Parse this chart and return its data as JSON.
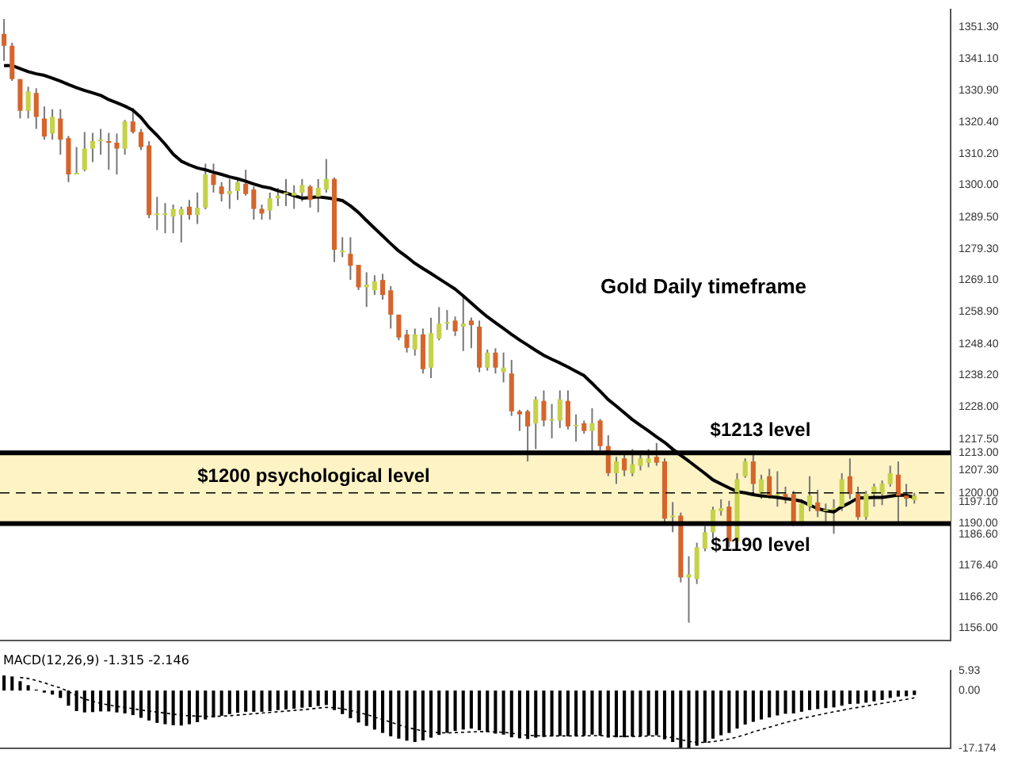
{
  "chart_data": [
    {
      "type": "candlestick",
      "categories": [
        null,
        null,
        null,
        null,
        null,
        null,
        null,
        null,
        null,
        null,
        null,
        null,
        null,
        null,
        null,
        null,
        null,
        null,
        null,
        null,
        null,
        null,
        null,
        null,
        null,
        null,
        null,
        null,
        null,
        null,
        null,
        null,
        null,
        null,
        null,
        null,
        null,
        null,
        null,
        null,
        null,
        null,
        null,
        null,
        null,
        null,
        null,
        null,
        null,
        null,
        null,
        null,
        null,
        null,
        null,
        null,
        null,
        null,
        null,
        null,
        null,
        null,
        null,
        null,
        null,
        null,
        null,
        null,
        null,
        null,
        null,
        null,
        null,
        null,
        null,
        null,
        null,
        null,
        null,
        null,
        null,
        null,
        null,
        null,
        null,
        null,
        null,
        null,
        null,
        null,
        null,
        null,
        null,
        null,
        null,
        null,
        null,
        null,
        null,
        null,
        null,
        null,
        null,
        null,
        null,
        null,
        null,
        null,
        null,
        null,
        null,
        null,
        null,
        null,
        null,
        null,
        null,
        null
      ],
      "ohlc": [
        [
          1349.2,
          1354,
          1340.4,
          1345.3
        ],
        [
          1345.3,
          1346.3,
          1333.9,
          1334.5
        ],
        [
          1334.5,
          1334.5,
          1321.7,
          1324.2
        ],
        [
          1324.2,
          1332,
          1321.7,
          1330.5
        ],
        [
          1330,
          1331.5,
          1318.3,
          1322.2
        ],
        [
          1321.7,
          1325.6,
          1314.8,
          1315.8
        ],
        [
          1316.8,
          1324.7,
          1314.8,
          1322.2
        ],
        [
          1321.7,
          1324.7,
          1309.9,
          1314.8
        ],
        [
          1315.3,
          1316,
          1301,
          1303.5
        ],
        [
          1303.5,
          1312.4,
          1303.5,
          1304
        ],
        [
          1305,
          1317.3,
          1304.5,
          1311.9
        ],
        [
          1311.9,
          1317,
          1307.5,
          1314.3
        ],
        [
          1314.3,
          1318.3,
          1309.9,
          1314.3
        ],
        [
          1314.3,
          1317,
          1305,
          1313.8
        ],
        [
          1313.8,
          1316.8,
          1303.5,
          1311.9
        ],
        [
          1311.9,
          1321.2,
          1309.9,
          1320.7
        ],
        [
          1320.7,
          1325.1,
          1316.8,
          1317.3
        ],
        [
          1317.3,
          1318.3,
          1311.4,
          1312.4
        ],
        [
          1312.9,
          1314.3,
          1289.3,
          1290.3
        ],
        [
          1290.3,
          1296.2,
          1285.4,
          1290.3
        ],
        [
          1290.3,
          1294.2,
          1284.4,
          1290.3
        ],
        [
          1289.8,
          1293.7,
          1284.4,
          1292.3
        ],
        [
          1290.3,
          1293,
          1281.4,
          1292.3
        ],
        [
          1293,
          1295.2,
          1288.8,
          1290.3
        ],
        [
          1290.3,
          1297.6,
          1287.4,
          1292.7
        ],
        [
          1292.7,
          1307,
          1292.2,
          1303.5
        ],
        [
          1303.5,
          1307,
          1297.6,
          1300.1
        ],
        [
          1299.6,
          1301,
          1294.7,
          1297.1
        ],
        [
          1297.1,
          1302,
          1292.3,
          1298.1
        ],
        [
          1298.1,
          1302.5,
          1295.2,
          1301
        ],
        [
          1300.5,
          1305,
          1296.6,
          1297.1
        ],
        [
          1298.6,
          1299.6,
          1288.8,
          1292.3
        ],
        [
          1292.3,
          1293.7,
          1288.8,
          1290.8
        ],
        [
          1291.8,
          1297.6,
          1288.8,
          1295.7
        ],
        [
          1295.7,
          1299.1,
          1293.2,
          1296.6
        ],
        [
          1297.1,
          1302,
          1293.2,
          1297.1
        ],
        [
          1296.6,
          1300,
          1292.3,
          1297.6
        ],
        [
          1297.6,
          1302,
          1294.7,
          1300
        ],
        [
          1299.6,
          1300.1,
          1292.7,
          1295.2
        ],
        [
          1296.2,
          1302,
          1291.2,
          1299.1
        ],
        [
          1298.6,
          1308.5,
          1297.6,
          1302
        ],
        [
          1302,
          1302.5,
          1275,
          1279
        ],
        [
          1278.2,
          1283.1,
          1276.6,
          1278.2
        ],
        [
          1277.7,
          1283.1,
          1269.2,
          1273.8
        ],
        [
          1274.1,
          1274.1,
          1265.9,
          1266.8
        ],
        [
          1266.8,
          1271.7,
          1260.4,
          1267.7
        ],
        [
          1265.8,
          1270.7,
          1264.3,
          1268.7
        ],
        [
          1269.2,
          1271.2,
          1262.8,
          1264.3
        ],
        [
          1265.8,
          1267.2,
          1253.4,
          1257.9
        ],
        [
          1257.9,
          1258,
          1249.6,
          1250.5
        ],
        [
          1251.5,
          1253,
          1245.6,
          1247.1
        ],
        [
          1246.6,
          1253.4,
          1244.6,
          1251.5
        ],
        [
          1251.5,
          1253.4,
          1238.8,
          1240.2
        ],
        [
          1240.7,
          1256.9,
          1237.3,
          1251.9
        ],
        [
          1250.1,
          1260.4,
          1249.6,
          1255
        ],
        [
          1255,
          1259.4,
          1253,
          1255
        ],
        [
          1256,
          1257.3,
          1251,
          1252.5
        ],
        [
          1254,
          1264.3,
          1246.1,
          1255
        ],
        [
          1256,
          1257,
          1247,
          1254.5
        ],
        [
          1254,
          1256,
          1239.2,
          1240.7
        ],
        [
          1240.7,
          1246.6,
          1239.7,
          1245.6
        ],
        [
          1245.6,
          1247,
          1238.8,
          1240.7
        ],
        [
          1239.2,
          1245.6,
          1235.9,
          1240.7
        ],
        [
          1238.8,
          1243.2,
          1225,
          1226.5
        ],
        [
          1226.5,
          1227,
          1220.1,
          1225.5
        ],
        [
          1226.5,
          1227,
          1210.2,
          1221.6
        ],
        [
          1222.5,
          1231.3,
          1214.2,
          1230.4
        ],
        [
          1229.9,
          1233.3,
          1221.6,
          1223.5
        ],
        [
          1223.5,
          1228.9,
          1217.7,
          1223.5
        ],
        [
          1223.5,
          1233.3,
          1221.1,
          1230.4
        ],
        [
          1229.9,
          1233.3,
          1220.6,
          1221.6
        ],
        [
          1221.6,
          1225.5,
          1216.7,
          1221.6
        ],
        [
          1222.6,
          1223.5,
          1219.2,
          1220.1
        ],
        [
          1220.1,
          1227.5,
          1212.8,
          1222.6
        ],
        [
          1223.5,
          1224,
          1213.8,
          1215.2
        ],
        [
          1215.2,
          1218.7,
          1205.4,
          1206.4
        ],
        [
          1206.4,
          1211.7,
          1202.9,
          1210.2
        ],
        [
          1211.2,
          1213.2,
          1205.4,
          1207.3
        ],
        [
          1206.4,
          1214.2,
          1205.4,
          1209.3
        ],
        [
          1208.8,
          1213.7,
          1207.3,
          1211.2
        ],
        [
          1209.8,
          1214.2,
          1208.3,
          1211.2
        ],
        [
          1211.7,
          1216.2,
          1208.8,
          1209.8
        ],
        [
          1210.2,
          1211.2,
          1189.7,
          1191.6
        ],
        [
          1192.1,
          1197,
          1187.2,
          1192.1
        ],
        [
          1192.6,
          1193.6,
          1170.9,
          1172.5
        ],
        [
          1172.5,
          1179.4,
          1157.8,
          1173.5
        ],
        [
          1172,
          1183.8,
          1170.4,
          1182.3
        ],
        [
          1181.9,
          1189.2,
          1181,
          1187.2
        ],
        [
          1187.2,
          1195.5,
          1185.2,
          1194.5
        ],
        [
          1194.1,
          1197.9,
          1192.6,
          1195
        ],
        [
          1195.5,
          1197.4,
          1182.3,
          1184.2
        ],
        [
          1184.2,
          1206.4,
          1182.3,
          1204.4
        ],
        [
          1205.4,
          1211.2,
          1204.9,
          1210.2
        ],
        [
          1210.2,
          1213.7,
          1200,
          1202.9
        ],
        [
          1199.6,
          1205.9,
          1198.1,
          1204.4
        ],
        [
          1205.4,
          1207.8,
          1198.1,
          1199.1
        ],
        [
          1199.1,
          1207,
          1195.5,
          1199.1
        ],
        [
          1199.6,
          1202,
          1196.5,
          1198.6
        ],
        [
          1199.6,
          1200.6,
          1189.2,
          1189.7
        ],
        [
          1189.7,
          1197.9,
          1189.2,
          1196.5
        ],
        [
          1195.5,
          1205.4,
          1194,
          1199.1
        ],
        [
          1196.9,
          1201,
          1192.1,
          1194.1
        ],
        [
          1194.1,
          1196.5,
          1190.7,
          1194.1
        ],
        [
          1194.6,
          1197.9,
          1186.7,
          1194.6
        ],
        [
          1195.5,
          1206.4,
          1194.1,
          1204.4
        ],
        [
          1205.4,
          1211.2,
          1198,
          1199.6
        ],
        [
          1199.6,
          1202,
          1191.2,
          1192.1
        ],
        [
          1192.1,
          1200.6,
          1191.2,
          1199.6
        ],
        [
          1199.6,
          1203,
          1195.5,
          1202
        ],
        [
          1199.6,
          1204,
          1196,
          1203
        ],
        [
          1202.9,
          1208.8,
          1202,
          1206.4
        ],
        [
          1205.9,
          1210.2,
          1190.7,
          1199.1
        ],
        [
          1199.1,
          1202.9,
          1195.5,
          1198.1
        ],
        [
          1197.6,
          1200,
          1196.5,
          1199.1
        ],
        null,
        null,
        null,
        null
      ],
      "series": [
        {
          "type": "line",
          "color": "#000000",
          "values": [
            1338.9,
            1338.9,
            1337.9,
            1336.9,
            1336.2,
            1335.7,
            1334.8,
            1333.8,
            1332.7,
            1331.7,
            1330.8,
            1330,
            1329.2,
            1327.8,
            1326.8,
            1325.7,
            1324.4,
            1322,
            1318.8,
            1316.2,
            1313.3,
            1310.1,
            1307.8,
            1306.6,
            1305.6,
            1305,
            1304.2,
            1303.5,
            1302.7,
            1302.1,
            1301.3,
            1300.4,
            1299.6,
            1299.1,
            1298.2,
            1297.5,
            1296.6,
            1295.8,
            1296,
            1296.2,
            1295.9,
            1295.5,
            1295,
            1293.3,
            1291.1,
            1288.5,
            1286,
            1283.5,
            1281,
            1278.6,
            1276.7,
            1274.6,
            1272.9,
            1271.3,
            1269.6,
            1267.9,
            1266.2,
            1264,
            1261.7,
            1259.4,
            1257.2,
            1255.3,
            1253.4,
            1251.5,
            1249.7,
            1248,
            1246.3,
            1244.7,
            1243.4,
            1242.2,
            1240.9,
            1239.5,
            1238.1,
            1235.6,
            1233,
            1230.3,
            1228.2,
            1226,
            1223.8,
            1221.9,
            1220.1,
            1218.2,
            1216.4,
            1214.2,
            1212.2,
            1210.3,
            1208.3,
            1206.3,
            1204.2,
            1202.9,
            1201.6,
            1200.4,
            1200,
            1199.4,
            1199,
            1198.8,
            1198.5,
            1198.1,
            1197.8,
            1197.3,
            1196,
            1194.9,
            1194.2,
            1193.8,
            1195.5,
            1196.8,
            1198.3,
            1198.4,
            1198.5,
            1198.5,
            1198.9,
            1199.3,
            1199.2,
            1198.5,
            null,
            null,
            null,
            null
          ]
        }
      ],
      "ylim": [
        1152,
        1357
      ],
      "yticks": [
        {
          "value": 1351.3,
          "label": "1351.30"
        },
        {
          "value": 1341.1,
          "label": "1341.10"
        },
        {
          "value": 1330.9,
          "label": "1330.90"
        },
        {
          "value": 1320.4,
          "label": "1320.40"
        },
        {
          "value": 1310.2,
          "label": "1310.20"
        },
        {
          "value": 1300,
          "label": "1300.00"
        },
        {
          "value": 1289.5,
          "label": "1289.50"
        },
        {
          "value": 1279.3,
          "label": "1279.30"
        },
        {
          "value": 1269.1,
          "label": "1269.10"
        },
        {
          "value": 1258.9,
          "label": "1258.90"
        },
        {
          "value": 1248.4,
          "label": "1248.40"
        },
        {
          "value": 1238.2,
          "label": "1238.20"
        },
        {
          "value": 1228,
          "label": "1228.00"
        },
        {
          "value": 1217.5,
          "label": "1217.50"
        },
        {
          "value": 1213,
          "label": "1213.00"
        },
        {
          "value": 1207.3,
          "label": "1207.30"
        },
        {
          "value": 1200,
          "label": "1200.00"
        },
        {
          "value": 1197.1,
          "label": "1197.10"
        },
        {
          "value": 1190,
          "label": "1190.00"
        },
        {
          "value": 1186.6,
          "label": "1186.60"
        },
        {
          "value": 1176.4,
          "label": "1176.40"
        },
        {
          "value": 1166.2,
          "label": "1166.20"
        },
        {
          "value": 1156,
          "label": "1156.00"
        }
      ],
      "ref_lines": [
        {
          "axis": "y",
          "value": 1213,
          "label": "$1213 level",
          "color": "#000000"
        },
        {
          "axis": "y",
          "value": 1200,
          "label": "$1200 psychological level",
          "color": "#000000",
          "line_style": "dashed"
        },
        {
          "axis": "y",
          "value": 1190,
          "label": "$1190 level",
          "color": "#000000"
        }
      ],
      "bands": [
        {
          "axis": "y",
          "from": 1190,
          "to": 1213,
          "color": "#fdf3c4"
        }
      ],
      "annotations": [
        "Gold Daily timeframe"
      ],
      "tick_labels": "y",
      "legend": false
    },
    {
      "type": "bar",
      "title": "MACD(12,26,9) -1.315 -2.146",
      "categories": [
        null,
        null,
        null,
        null,
        null,
        null,
        null,
        null,
        null,
        null,
        null,
        null,
        null,
        null,
        null,
        null,
        null,
        null,
        null,
        null,
        null,
        null,
        null,
        null,
        null,
        null,
        null,
        null,
        null,
        null,
        null,
        null,
        null,
        null,
        null,
        null,
        null,
        null,
        null,
        null,
        null,
        null,
        null,
        null,
        null,
        null,
        null,
        null,
        null,
        null,
        null,
        null,
        null,
        null,
        null,
        null,
        null,
        null,
        null,
        null,
        null,
        null,
        null,
        null,
        null,
        null,
        null,
        null,
        null,
        null,
        null,
        null,
        null,
        null,
        null,
        null,
        null,
        null,
        null,
        null,
        null,
        null,
        null,
        null,
        null,
        null,
        null,
        null,
        null,
        null,
        null,
        null,
        null,
        null,
        null,
        null,
        null,
        null,
        null,
        null,
        null,
        null,
        null,
        null,
        null,
        null,
        null,
        null,
        null,
        null,
        null,
        null,
        null,
        null,
        null,
        null,
        null,
        null
      ],
      "series": [
        {
          "type": "bar",
          "color": "#000000",
          "values": [
            4.5,
            4.2,
            2.8,
            1.6,
            0.3,
            -0.6,
            -1.2,
            -2.2,
            -4.5,
            -6.1,
            -6.5,
            -6.4,
            -6.2,
            -6.2,
            -6.5,
            -6.8,
            -7.3,
            -8.1,
            -8.9,
            -9.6,
            -10,
            -10.3,
            -10.4,
            -10,
            -9.4,
            -8.6,
            -8,
            -7.5,
            -7,
            -6.6,
            -6.3,
            -6.3,
            -6.3,
            -6.1,
            -5.8,
            -5.6,
            -5.4,
            -5.1,
            -4.9,
            -4.6,
            -4.3,
            -5.8,
            -7,
            -8.2,
            -9.5,
            -10.5,
            -11.6,
            -12.6,
            -13.6,
            -14.3,
            -14.9,
            -15.3,
            -14.8,
            -14,
            -13.2,
            -12.6,
            -12,
            -11.6,
            -11.3,
            -11.8,
            -12.3,
            -12.8,
            -13.1,
            -13.9,
            -14.2,
            -14.4,
            -14,
            -13.8,
            -13.6,
            -13.5,
            -13.6,
            -13.5,
            -13.4,
            -13.1,
            -13.4,
            -14,
            -13.9,
            -13.9,
            -13.7,
            -13.5,
            -13.4,
            -13.3,
            -14.5,
            -15.3,
            -17,
            -17.1,
            -16.4,
            -15.5,
            -14.3,
            -13.3,
            -12.6,
            -11.3,
            -10.1,
            -9.3,
            -8.6,
            -8,
            -7.4,
            -6.9,
            -6.8,
            -6.3,
            -5.8,
            -5.5,
            -5.2,
            -5,
            -4.5,
            -4,
            -3.9,
            -3.6,
            -3.2,
            -2.8,
            -2.2,
            -1.8,
            -1.7,
            -1.315,
            null,
            null,
            null,
            null
          ]
        },
        {
          "type": "line",
          "color": "#000000",
          "line_style": "dotted",
          "values": [
            null,
            null,
            3.9,
            3.6,
            3,
            2.3,
            1.5,
            0.8,
            -0.3,
            -1.5,
            -2.5,
            -3.2,
            -3.8,
            -4.3,
            -4.7,
            -5,
            -5.4,
            -5.8,
            -6.1,
            -6.4,
            -6.7,
            -7,
            -7.3,
            -7.5,
            -7.6,
            -7.7,
            -7.7,
            -7.6,
            -7.5,
            -7.3,
            -7.1,
            -6.9,
            -6.7,
            -6.5,
            -6.3,
            -6.1,
            -5.9,
            -5.7,
            -5.5,
            -5.2,
            -5,
            -5.1,
            -5.4,
            -5.9,
            -6.5,
            -7.1,
            -7.9,
            -8.6,
            -9.4,
            -10.2,
            -10.9,
            -11.5,
            -12,
            -12.3,
            -12.5,
            -12.6,
            -12.5,
            -12.4,
            -12.3,
            -12.2,
            -12.2,
            -12.3,
            -12.4,
            -12.7,
            -13,
            -13.3,
            -13.4,
            -13.5,
            -13.5,
            -13.5,
            -13.5,
            -13.5,
            -13.5,
            -13.4,
            -13.4,
            -13.5,
            -13.6,
            -13.6,
            -13.6,
            -13.6,
            -13.5,
            -13.5,
            -13.7,
            -14,
            -14.6,
            -15.1,
            -15.4,
            -15.4,
            -15.2,
            -14.8,
            -14.4,
            -13.8,
            -13.1,
            -12.3,
            -11.6,
            -10.9,
            -10.2,
            -9.5,
            -8.9,
            -8.3,
            -7.8,
            -7.3,
            -6.8,
            -6.3,
            -5.9,
            -5.4,
            -5,
            -4.6,
            -4.2,
            -3.8,
            -3.4,
            -3,
            -2.6,
            -2.146,
            null,
            null,
            null,
            null
          ]
        }
      ],
      "ylim": [
        -17.174,
        5.93
      ],
      "yticks": [
        5.93,
        {
          "value": 0,
          "label": "0.00"
        },
        -17.174
      ],
      "tick_labels": "y",
      "legend": false
    }
  ]
}
